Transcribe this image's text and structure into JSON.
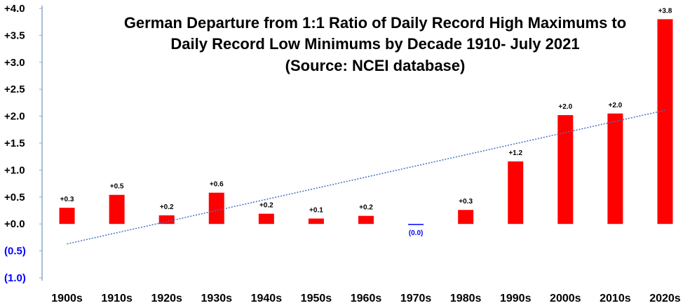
{
  "chart_data": {
    "type": "bar",
    "title": [
      "German Departure from 1:1 Ratio of Daily Record High Maximums to",
      "Daily Record Low Minimums by Decade 1910- July 2021",
      "(Source: NCEI database)"
    ],
    "categories": [
      "1900s",
      "1910s",
      "1920s",
      "1930s",
      "1940s",
      "1950s",
      "1960s",
      "1970s",
      "1980s",
      "1990s",
      "2000s",
      "2010s",
      "2020s"
    ],
    "values": [
      0.3,
      0.54,
      0.16,
      0.58,
      0.19,
      0.1,
      0.15,
      -0.01,
      0.26,
      1.16,
      2.02,
      2.05,
      3.8
    ],
    "data_labels": [
      "+0.3",
      "+0.5",
      "+0.2",
      "+0.6",
      "+0.2",
      "+0.1",
      "+0.2",
      "(0.0)",
      "+0.3",
      "+1.2",
      "+2.0",
      "+2.0",
      "+3.8"
    ],
    "ylim": [
      -1.0,
      4.0
    ],
    "y_ticks": [
      4.0,
      3.5,
      3.0,
      2.5,
      2.0,
      1.5,
      1.0,
      0.5,
      0.0,
      -0.5,
      -1.0
    ],
    "y_tick_labels": [
      "+4.0",
      "+3.5",
      "+3.0",
      "+2.5",
      "+2.0",
      "+1.5",
      "+1.0",
      "+0.5",
      "+0.0",
      "(0.5)",
      "(1.0)"
    ],
    "trendline": {
      "type": "linear",
      "start": -0.37,
      "end": 2.11
    },
    "grid": false,
    "legend": "none",
    "colors": {
      "positive_bar": "#ff0000",
      "negative_bar": "#0000ff",
      "positive_label": "#000000",
      "negative_label": "#0000ff",
      "axis": "#8ea9c8",
      "trendline": "#4472c4",
      "background": "#ffffff"
    }
  }
}
